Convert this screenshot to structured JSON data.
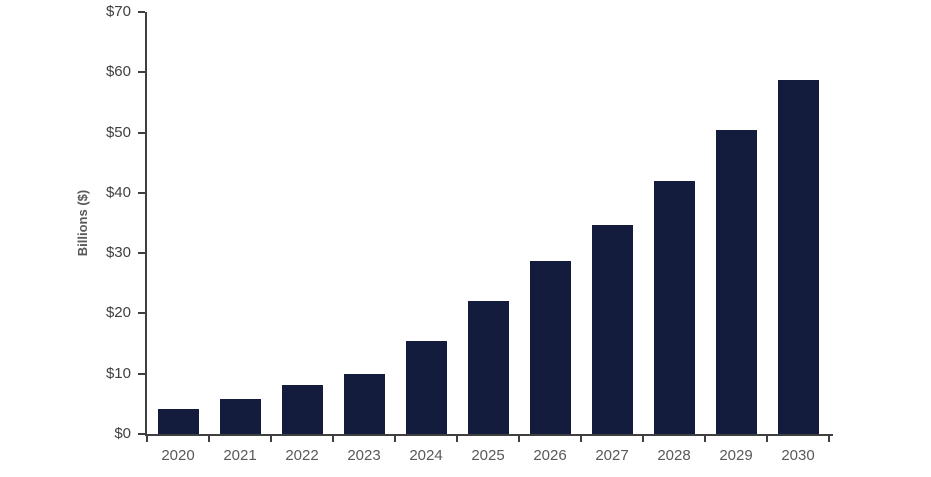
{
  "chart_data": {
    "type": "bar",
    "title": "",
    "categories": [
      "2020",
      "2021",
      "2022",
      "2023",
      "2024",
      "2025",
      "2026",
      "2027",
      "2028",
      "2029",
      "2030"
    ],
    "values": [
      4.2,
      5.8,
      8.1,
      10.0,
      15.4,
      22.0,
      28.7,
      34.6,
      42.0,
      50.5,
      58.8
    ],
    "xlabel": "",
    "ylabel": "Billions ($)",
    "ylim": [
      0,
      70
    ],
    "ytick_step": 10,
    "ytick_labels": [
      "$0",
      "$10",
      "$20",
      "$30",
      "$40",
      "$50",
      "$60",
      "$70"
    ],
    "grid": false,
    "legend": false,
    "colors": {
      "bar": "#131c3d",
      "axis": "#3f3f3f",
      "y_tick_label": "#404040",
      "x_tick_label": "#595959",
      "background": "#ffffff"
    }
  }
}
